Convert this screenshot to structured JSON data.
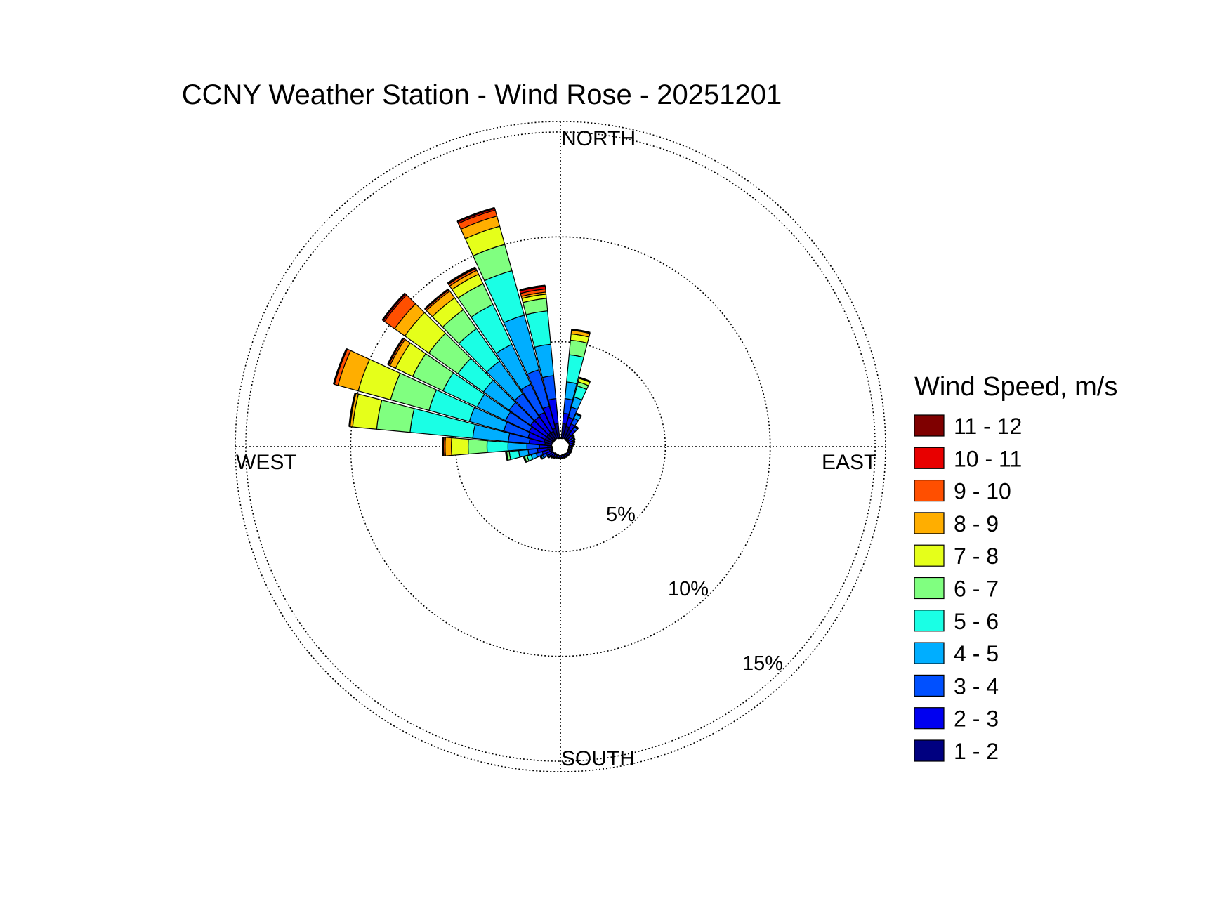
{
  "chart_data": {
    "type": "wind_rose",
    "title": "CCNY Weather Station - Wind Rose - 20251201",
    "directions": {
      "north": "NORTH",
      "south": "SOUTH",
      "east": "EAST",
      "west": "WEST"
    },
    "radial_unit": "%",
    "radial_max": 15.5,
    "rings": [
      {
        "value": 5,
        "label": "5%"
      },
      {
        "value": 10,
        "label": "10%"
      },
      {
        "value": 15,
        "label": "15%"
      }
    ],
    "legend": {
      "title": "Wind Speed, m/s",
      "placement": "right",
      "bins": [
        {
          "label": "11 - 12",
          "color": "#7f0000"
        },
        {
          "label": "10 - 11",
          "color": "#e80000"
        },
        {
          "label": "9 - 10",
          "color": "#ff4f00"
        },
        {
          "label": "8 - 9",
          "color": "#ffae00"
        },
        {
          "label": "7 - 8",
          "color": "#e5ff1a"
        },
        {
          "label": "6 - 7",
          "color": "#80ff80"
        },
        {
          "label": "5 - 6",
          "color": "#1affe5"
        },
        {
          "label": "4 - 5",
          "color": "#00aeff"
        },
        {
          "label": "3 - 4",
          "color": "#0050ff"
        },
        {
          "label": "2 - 3",
          "color": "#0000f0"
        },
        {
          "label": "1 - 2",
          "color": "#000080"
        }
      ]
    },
    "speed_bins_bottom_to_top": [
      "1 - 2",
      "2 - 3",
      "3 - 4",
      "4 - 5",
      "5 - 6",
      "6 - 7",
      "7 - 8",
      "8 - 9",
      "9 - 10",
      "10 - 11",
      "11 - 12"
    ],
    "sectors": [
      {
        "direction_deg": 10,
        "cumulative": [
          1.1,
          1.6,
          2.3,
          3.1,
          4.4,
          5.1,
          5.4,
          5.6
        ]
      },
      {
        "direction_deg": 20,
        "cumulative": [
          1.0,
          1.45,
          1.95,
          2.45,
          3.0,
          3.2,
          3.4
        ]
      },
      {
        "direction_deg": 30,
        "cumulative": [
          0.9,
          1.2,
          1.5,
          1.75
        ]
      },
      {
        "direction_deg": 40,
        "cumulative": [
          0.7,
          1.0,
          1.15,
          1.2
        ]
      },
      {
        "direction_deg": 50,
        "cumulative": [
          0.5,
          0.7,
          0.8
        ]
      },
      {
        "direction_deg": 60,
        "cumulative": [
          0.45,
          0.65,
          0.75
        ]
      },
      {
        "direction_deg": 70,
        "cumulative": [
          0.45,
          0.65,
          0.7
        ]
      },
      {
        "direction_deg": 80,
        "cumulative": [
          0.45,
          0.6,
          0.65
        ]
      },
      {
        "direction_deg": 90,
        "cumulative": [
          0.45,
          0.55
        ]
      },
      {
        "direction_deg": 100,
        "cumulative": [
          0.45,
          0.55
        ]
      },
      {
        "direction_deg": 110,
        "cumulative": [
          0.45,
          0.55
        ]
      },
      {
        "direction_deg": 120,
        "cumulative": [
          0.45,
          0.55
        ]
      },
      {
        "direction_deg": 130,
        "cumulative": [
          0.45,
          0.55
        ]
      },
      {
        "direction_deg": 140,
        "cumulative": [
          0.45,
          0.55
        ]
      },
      {
        "direction_deg": 150,
        "cumulative": [
          0.45,
          0.55
        ]
      },
      {
        "direction_deg": 160,
        "cumulative": [
          0.45,
          0.55
        ]
      },
      {
        "direction_deg": 170,
        "cumulative": [
          0.45,
          0.55
        ]
      },
      {
        "direction_deg": 180,
        "cumulative": [
          0.45,
          0.55
        ]
      },
      {
        "direction_deg": 190,
        "cumulative": [
          0.45,
          0.55
        ]
      },
      {
        "direction_deg": 200,
        "cumulative": [
          0.45,
          0.55
        ]
      },
      {
        "direction_deg": 210,
        "cumulative": [
          0.45,
          0.6
        ]
      },
      {
        "direction_deg": 220,
        "cumulative": [
          0.45,
          0.6,
          0.65
        ]
      },
      {
        "direction_deg": 230,
        "cumulative": [
          0.45,
          0.65,
          0.75
        ]
      },
      {
        "direction_deg": 240,
        "cumulative": [
          0.5,
          0.75,
          0.95,
          1.05
        ]
      },
      {
        "direction_deg": 250,
        "cumulative": [
          0.55,
          0.9,
          1.2,
          1.45,
          1.65,
          1.8
        ]
      },
      {
        "direction_deg": 260,
        "cumulative": [
          0.6,
          1.1,
          1.55,
          2.0,
          2.45,
          2.6
        ]
      },
      {
        "direction_deg": 270,
        "cumulative": [
          0.6,
          1.0,
          1.6,
          2.5,
          3.5,
          4.4,
          5.2,
          5.5,
          5.6
        ]
      },
      {
        "direction_deg": 280,
        "cumulative": [
          0.75,
          1.5,
          2.5,
          4.2,
          7.2,
          8.8,
          9.95,
          10.1
        ]
      },
      {
        "direction_deg": 290,
        "cumulative": [
          0.8,
          1.6,
          2.8,
          4.5,
          6.5,
          8.4,
          10.0,
          11.0,
          11.2
        ]
      },
      {
        "direction_deg": 300,
        "cumulative": [
          0.8,
          1.65,
          2.9,
          4.4,
          6.2,
          7.8,
          8.7,
          9.0,
          9.1
        ]
      },
      {
        "direction_deg": 310,
        "cumulative": [
          0.8,
          1.75,
          3.0,
          4.5,
          6.0,
          7.7,
          9.1,
          9.7,
          10.3,
          10.4
        ]
      },
      {
        "direction_deg": 320,
        "cumulative": [
          0.8,
          1.75,
          3.1,
          5.0,
          6.9,
          8.0,
          8.7,
          9.1,
          9.2
        ]
      },
      {
        "direction_deg": 330,
        "cumulative": [
          0.8,
          1.8,
          3.3,
          5.4,
          7.5,
          8.6,
          9.1,
          9.3,
          9.4,
          9.45
        ]
      },
      {
        "direction_deg": 340,
        "cumulative": [
          0.9,
          2.0,
          3.8,
          6.5,
          8.7,
          10.0,
          10.9,
          11.4,
          11.7,
          11.8
        ]
      },
      {
        "direction_deg": 350,
        "cumulative": [
          1.1,
          2.3,
          3.4,
          4.9,
          6.5,
          7.1,
          7.3,
          7.4,
          7.55,
          7.7
        ]
      }
    ]
  }
}
